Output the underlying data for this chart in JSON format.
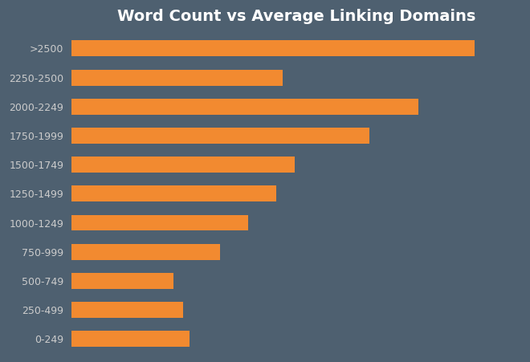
{
  "title": "Word Count vs Average Linking Domains",
  "title_fontsize": 14,
  "title_color": "white",
  "title_fontweight": "bold",
  "categories": [
    ">2500",
    "2250-2500",
    "2000-2249",
    "1750-1999",
    "1500-1749",
    "1250-1499",
    "1000-1249",
    "750-999",
    "500-749",
    "250-499",
    "0-249"
  ],
  "values": [
    130,
    68,
    112,
    96,
    72,
    66,
    57,
    48,
    33,
    36,
    38
  ],
  "bar_color": "#F28A30",
  "background_color": "#4E6070",
  "tick_label_color": "#cccccc",
  "tick_label_fontsize": 9,
  "tick_label_fontweight": "normal",
  "bar_height": 0.55,
  "xlim": [
    0,
    145
  ],
  "figsize": [
    6.6,
    4.51
  ],
  "dpi": 100
}
